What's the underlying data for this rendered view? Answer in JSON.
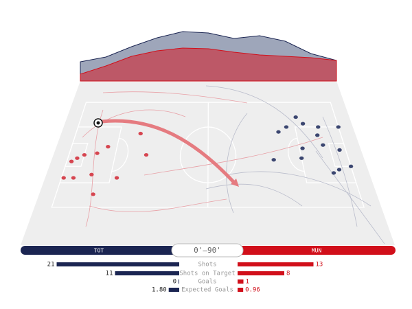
{
  "teams": {
    "home": {
      "name": "TOT",
      "color": "#1b2552"
    },
    "away": {
      "name": "MUN",
      "color": "#d10f1a"
    }
  },
  "period": "0'–90'",
  "momentum": {
    "home": {
      "color": "#949cb2",
      "values": [
        28,
        35,
        50,
        63,
        72,
        70,
        62,
        66,
        58,
        40,
        30
      ]
    },
    "away": {
      "color": "#c0505e",
      "values": [
        10,
        22,
        36,
        44,
        48,
        47,
        42,
        38,
        36,
        34,
        30
      ]
    }
  },
  "shots": [
    {
      "color": "#d64550",
      "u": [
        0.17,
        0.14,
        0.1,
        0.08,
        0.065,
        0.087,
        0.057,
        0.14,
        0.16,
        0.22,
        0.3,
        0.27
      ],
      "v": [
        0.4,
        0.44,
        0.45,
        0.47,
        0.49,
        0.59,
        0.59,
        0.57,
        0.69,
        0.59,
        0.45,
        0.32
      ]
    },
    {
      "color": "#3b4670",
      "u": [
        0.74,
        0.77,
        0.81,
        0.83,
        0.88,
        0.95,
        0.87,
        0.88,
        0.81,
        0.8,
        0.93,
        0.91,
        0.95,
        0.89,
        0.71
      ],
      "v": [
        0.31,
        0.28,
        0.22,
        0.26,
        0.28,
        0.28,
        0.33,
        0.39,
        0.41,
        0.47,
        0.42,
        0.54,
        0.52,
        0.56,
        0.48
      ]
    }
  ],
  "stats": {
    "labels": [
      "Shots",
      "Shots on Target",
      "Goals",
      "Expected Goals"
    ],
    "home": {
      "values": [
        21,
        11,
        0,
        1.8
      ],
      "value_labels": [
        "21",
        "11",
        "0",
        "1.80"
      ]
    },
    "away": {
      "values": [
        13,
        8,
        1,
        0.96
      ]
    }
  }
}
